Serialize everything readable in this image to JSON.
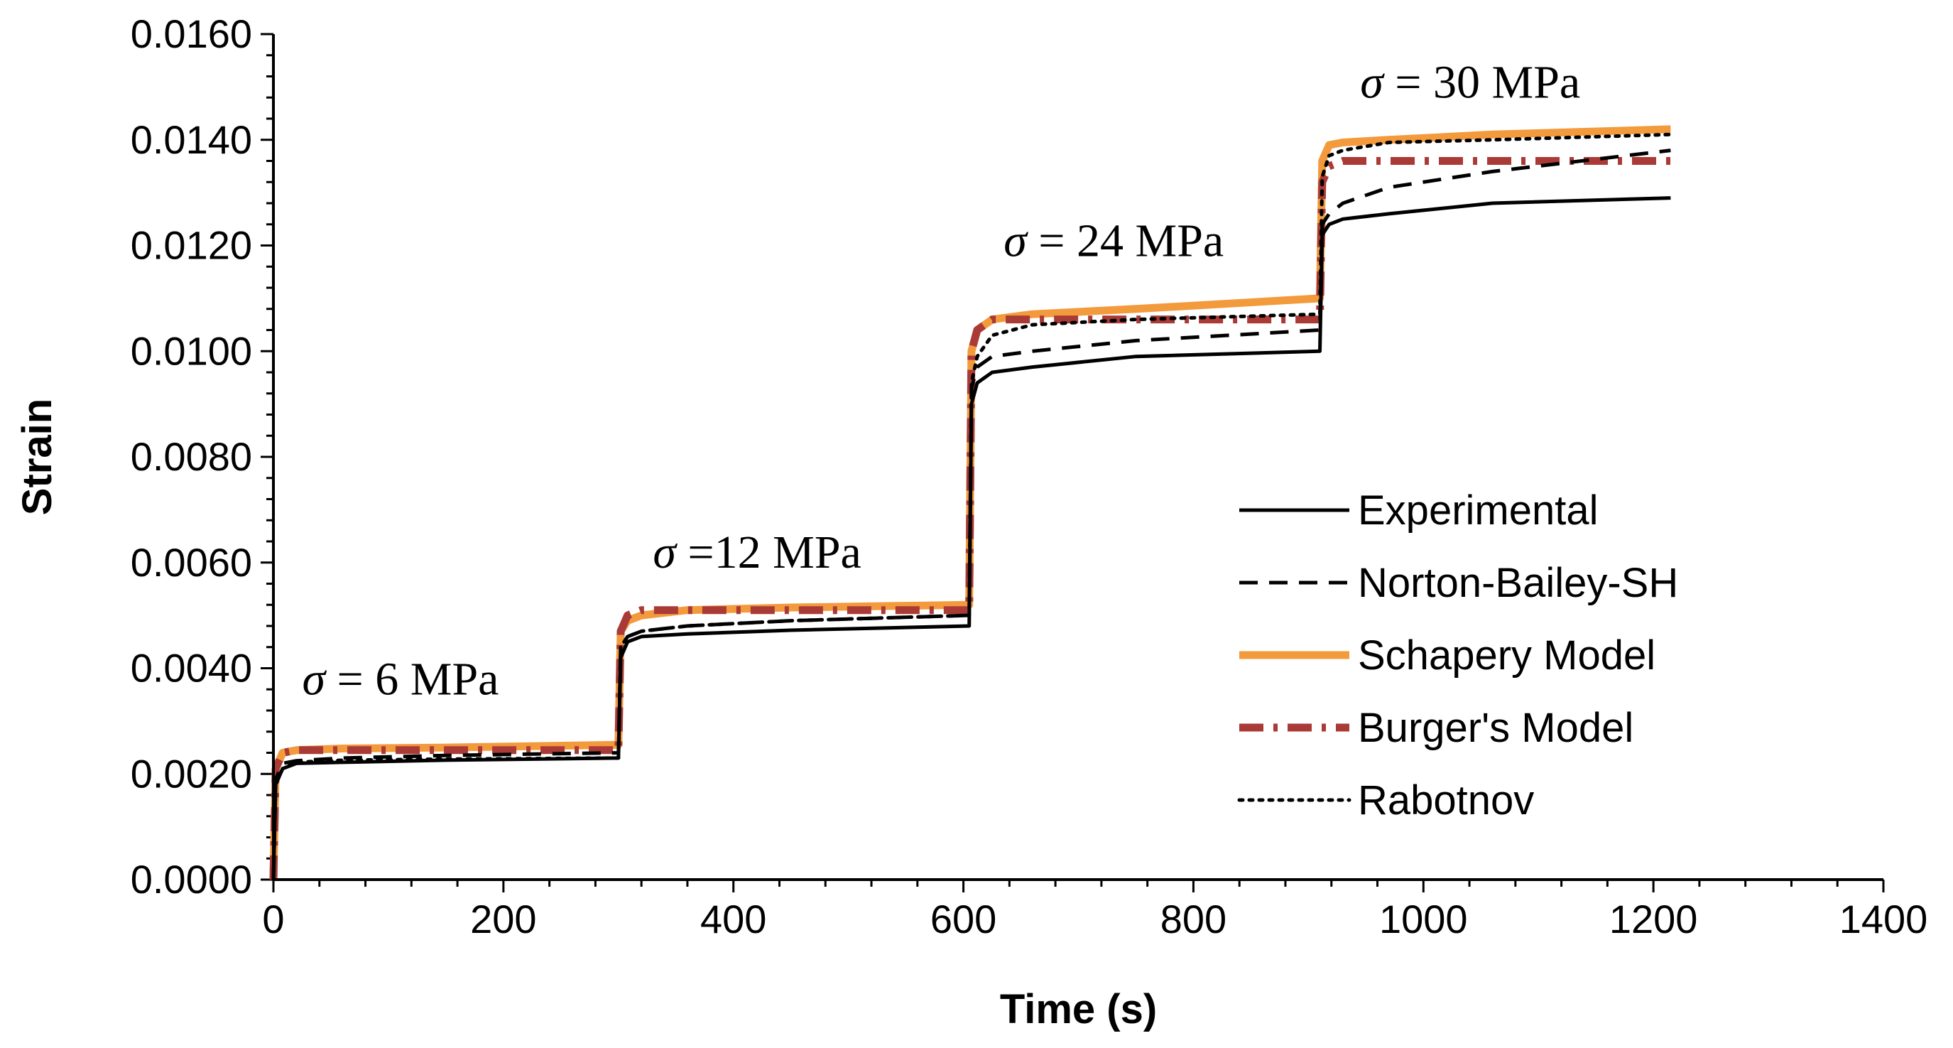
{
  "chart_data": {
    "type": "line",
    "xlabel": "Time (s)",
    "ylabel": "Strain",
    "xlim": [
      0,
      1400
    ],
    "ylim": [
      0,
      0.016
    ],
    "x_ticks": [
      "0",
      "200",
      "400",
      "600",
      "800",
      "1000",
      "1200",
      "1400"
    ],
    "y_ticks": [
      "0.0000",
      "0.0020",
      "0.0040",
      "0.0060",
      "0.0080",
      "0.0100",
      "0.0120",
      "0.0140",
      "0.0160"
    ],
    "annotations": [
      {
        "symbol": "σ",
        "text": " = 6 MPa",
        "x": 25,
        "y": 0.0035
      },
      {
        "symbol": "σ",
        "text": " =12 MPa",
        "x": 330,
        "y": 0.0059
      },
      {
        "symbol": "σ",
        "text": " = 24 MPa",
        "x": 635,
        "y": 0.0118
      },
      {
        "symbol": "σ",
        "text": " = 30 MPa",
        "x": 945,
        "y": 0.0148
      }
    ],
    "legend_position": "right",
    "series": [
      {
        "name": "Experimental",
        "color": "#000000",
        "style": "solid",
        "x": [
          0,
          2,
          8,
          20,
          60,
          150,
          300,
          302,
          308,
          320,
          360,
          450,
          605,
          607,
          612,
          625,
          660,
          750,
          910,
          912,
          918,
          930,
          970,
          1060,
          1215
        ],
        "y": [
          0,
          0.0018,
          0.0021,
          0.0022,
          0.00222,
          0.00226,
          0.0023,
          0.0042,
          0.0045,
          0.0046,
          0.00465,
          0.00472,
          0.0048,
          0.009,
          0.0094,
          0.0096,
          0.0097,
          0.0099,
          0.01,
          0.0122,
          0.0124,
          0.0125,
          0.0126,
          0.0128,
          0.0129
        ]
      },
      {
        "name": "Norton-Bailey-SH",
        "color": "#000000",
        "style": "dashed",
        "x": [
          0,
          2,
          8,
          20,
          60,
          150,
          300,
          302,
          308,
          320,
          360,
          450,
          605,
          607,
          612,
          625,
          660,
          750,
          910,
          912,
          918,
          930,
          970,
          1060,
          1215
        ],
        "y": [
          0,
          0.0019,
          0.0022,
          0.00225,
          0.0023,
          0.00235,
          0.0024,
          0.0044,
          0.0046,
          0.0047,
          0.0048,
          0.0049,
          0.005,
          0.0093,
          0.0097,
          0.0099,
          0.01,
          0.0102,
          0.0104,
          0.0124,
          0.0126,
          0.0128,
          0.0131,
          0.0134,
          0.0138
        ]
      },
      {
        "name": "Schapery Model",
        "color": "#f39a3d",
        "style": "solid",
        "x": [
          0,
          2,
          8,
          20,
          60,
          150,
          300,
          302,
          308,
          320,
          360,
          450,
          605,
          607,
          612,
          625,
          660,
          750,
          910,
          912,
          918,
          930,
          970,
          1060,
          1215
        ],
        "y": [
          0,
          0.0021,
          0.0024,
          0.00245,
          0.00248,
          0.0025,
          0.00255,
          0.0047,
          0.0049,
          0.005,
          0.0051,
          0.00515,
          0.0052,
          0.01,
          0.0104,
          0.0106,
          0.0107,
          0.0108,
          0.011,
          0.0136,
          0.0139,
          0.01395,
          0.014,
          0.0141,
          0.0142
        ]
      },
      {
        "name": "Burger's Model",
        "color": "#a93a36",
        "style": "dashdot",
        "x": [
          0,
          2,
          8,
          20,
          60,
          150,
          300,
          302,
          308,
          320,
          360,
          450,
          605,
          607,
          612,
          625,
          660,
          750,
          910,
          912,
          918,
          930,
          970,
          1060,
          1215
        ],
        "y": [
          0,
          0.0021,
          0.0024,
          0.00245,
          0.00245,
          0.00245,
          0.00245,
          0.0047,
          0.005,
          0.0051,
          0.0051,
          0.0051,
          0.0051,
          0.01,
          0.0104,
          0.0106,
          0.0106,
          0.0106,
          0.0106,
          0.0132,
          0.0135,
          0.0136,
          0.0136,
          0.0136,
          0.0136
        ]
      },
      {
        "name": "Rabotnov",
        "color": "#000000",
        "style": "dotted",
        "x": [
          0,
          2,
          8,
          20,
          60,
          150,
          300,
          302,
          308,
          320,
          360,
          450,
          605,
          607,
          612,
          625,
          660,
          750,
          910,
          912,
          918,
          930,
          970,
          1060,
          1215
        ],
        "y": [
          0,
          0.0018,
          0.0021,
          0.00222,
          0.00226,
          0.00228,
          0.0023,
          0.0044,
          0.0046,
          0.0047,
          0.0048,
          0.0049,
          0.005,
          0.0094,
          0.0099,
          0.0103,
          0.0105,
          0.0106,
          0.0107,
          0.0133,
          0.0137,
          0.0138,
          0.01395,
          0.014,
          0.0141
        ]
      }
    ]
  }
}
